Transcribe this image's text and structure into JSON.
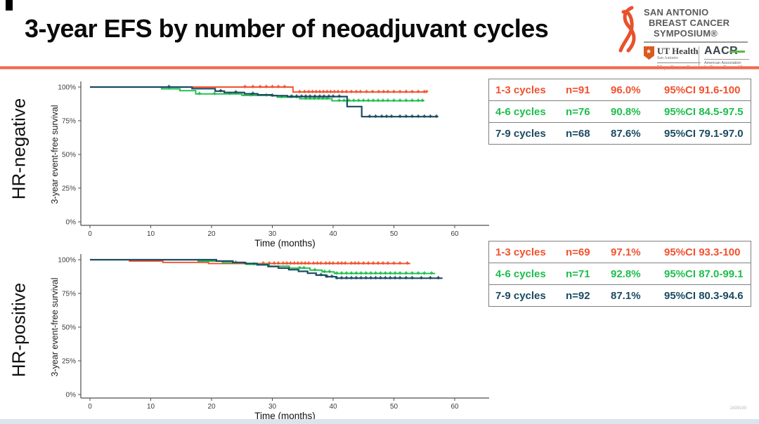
{
  "slide": {
    "title": "3-year EFS by number of neoadjuvant cycles",
    "footnote": "2409190"
  },
  "logos": {
    "sabcs": {
      "line1": "SAN ANTONIO",
      "line2": "BREAST CANCER",
      "line3": "SYMPOSIUM®"
    },
    "uthealth": {
      "star": "★",
      "name": "UT Health",
      "sub1": "San Antonio",
      "sub2": "Mays Cancer Center"
    },
    "aacr": {
      "name": "AACR",
      "sub1": "American Association",
      "sub2": "for Cancer Research®"
    }
  },
  "colors": {
    "orange": "#f1512e",
    "green": "#1dbe4d",
    "navy": "#1b4a63",
    "rule": "#ed6a4d",
    "footer_bar": "#dbe5ef"
  },
  "panels": [
    {
      "row_label": "HR-negative",
      "legend": [
        {
          "group": "1-3 cycles",
          "n": "n=91",
          "pct": "96.0%",
          "ci": "95%CI 91.6-100"
        },
        {
          "group": "4-6 cycles",
          "n": "n=76",
          "pct": "90.8%",
          "ci": "95%CI 84.5-97.5"
        },
        {
          "group": "7-9 cycles",
          "n": "n=68",
          "pct": "87.6%",
          "ci": "95%CI 79.1-97.0"
        }
      ]
    },
    {
      "row_label": "HR-positive",
      "legend": [
        {
          "group": "1-3 cycles",
          "n": "n=69",
          "pct": "97.1%",
          "ci": "95%CI 93.3-100"
        },
        {
          "group": "4-6 cycles",
          "n": "n=71",
          "pct": "92.8%",
          "ci": "95%CI 87.0-99.1"
        },
        {
          "group": "7-9 cycles",
          "n": "n=92",
          "pct": "87.1%",
          "ci": "95%CI 80.3-94.6"
        }
      ]
    }
  ],
  "chart_data": [
    {
      "type": "line",
      "subtype": "kaplan-meier-step",
      "title": "HR-negative",
      "xlabel": "Time (months)",
      "ylabel": "3-year event-free survival",
      "xlim": [
        0,
        63
      ],
      "ylim": [
        0,
        100
      ],
      "xticks": [
        0,
        10,
        20,
        30,
        40,
        50,
        60
      ],
      "yticks": [
        {
          "v": 0,
          "label": "0%"
        },
        {
          "v": 25,
          "label": "25%"
        },
        {
          "v": 50,
          "label": "50%"
        },
        {
          "v": 75,
          "label": "75%"
        },
        {
          "v": 100,
          "label": "100%"
        }
      ],
      "grid": false,
      "legend_position": "external-right-table",
      "series": [
        {
          "name": "1-3 cycles",
          "color": "#f1512e",
          "n": 91,
          "estimate_3yr": "96.0%",
          "ci": "91.6-100",
          "points": [
            [
              0,
              100
            ],
            [
              33.4,
              100
            ],
            [
              33.4,
              96.3
            ],
            [
              55.5,
              96.3
            ]
          ],
          "censors": [
            25.5,
            26.8,
            28,
            29,
            30,
            31,
            32,
            34.5,
            35.3,
            36,
            36.6,
            37.2,
            37.8,
            38.4,
            39,
            39.6,
            40.2,
            40.8,
            41.5,
            42.2,
            43,
            43.8,
            44.5,
            45.5,
            46.5,
            47.5,
            48.3,
            49,
            50,
            51,
            52,
            53,
            54,
            55,
            55.4
          ]
        },
        {
          "name": "4-6 cycles",
          "color": "#1dbe4d",
          "n": 76,
          "estimate_3yr": "90.8%",
          "ci": "84.5-97.5",
          "points": [
            [
              0,
              100
            ],
            [
              11.8,
              100
            ],
            [
              11.8,
              98.7
            ],
            [
              14.8,
              98.7
            ],
            [
              14.8,
              97.3
            ],
            [
              17.4,
              97.3
            ],
            [
              17.4,
              94.9
            ],
            [
              25,
              94.9
            ],
            [
              25,
              93.8
            ],
            [
              30.8,
              93.8
            ],
            [
              30.8,
              92.5
            ],
            [
              34.5,
              92.5
            ],
            [
              34.5,
              91.3
            ],
            [
              39.8,
              91.3
            ],
            [
              39.8,
              89.8
            ],
            [
              55,
              89.8
            ]
          ],
          "censors": [
            18,
            20.5,
            23,
            26.5,
            29,
            31.5,
            33,
            34,
            35.5,
            36.2,
            36.9,
            37.6,
            38.3,
            39,
            41,
            41.8,
            42.6,
            43.4,
            44.2,
            45,
            45.8,
            46.6,
            47.4,
            48.2,
            49,
            50,
            51,
            52,
            53,
            54,
            54.7
          ]
        },
        {
          "name": "7-9 cycles",
          "color": "#1b4a63",
          "n": 68,
          "estimate_3yr": "87.6%",
          "ci": "79.1-97.0",
          "points": [
            [
              0,
              100
            ],
            [
              16.8,
              100
            ],
            [
              16.8,
              98.8
            ],
            [
              20.6,
              98.8
            ],
            [
              20.6,
              97
            ],
            [
              22.1,
              97
            ],
            [
              22.1,
              96
            ],
            [
              25.4,
              96
            ],
            [
              25.4,
              95
            ],
            [
              27.6,
              95
            ],
            [
              27.6,
              94.2
            ],
            [
              29.9,
              94.2
            ],
            [
              29.9,
              93.6
            ],
            [
              32.5,
              93.6
            ],
            [
              32.5,
              92.9
            ],
            [
              42.3,
              92.9
            ],
            [
              42.3,
              85.5
            ],
            [
              44.7,
              85.5
            ],
            [
              44.7,
              78
            ],
            [
              57.3,
              78
            ]
          ],
          "censors": [
            13,
            21.5,
            24,
            26.8,
            30,
            33.2,
            34,
            34.8,
            35.5,
            36.2,
            37,
            37.8,
            38.5,
            39.3,
            40,
            41,
            46,
            47,
            48,
            48.8,
            49.6,
            51,
            52,
            53,
            54,
            55,
            56,
            57
          ]
        }
      ]
    },
    {
      "type": "line",
      "subtype": "kaplan-meier-step",
      "title": "HR-positive",
      "xlabel": "Time (months)",
      "ylabel": "3-year event-free survival",
      "xlim": [
        0,
        63
      ],
      "ylim": [
        0,
        100
      ],
      "xticks": [
        0,
        10,
        20,
        30,
        40,
        50,
        60
      ],
      "yticks": [
        {
          "v": 0,
          "label": "0%"
        },
        {
          "v": 25,
          "label": "25%"
        },
        {
          "v": 50,
          "label": "50%"
        },
        {
          "v": 75,
          "label": "75%"
        },
        {
          "v": 100,
          "label": "100%"
        }
      ],
      "grid": false,
      "legend_position": "external-right-table",
      "series": [
        {
          "name": "1-3 cycles",
          "color": "#f1512e",
          "n": 69,
          "estimate_3yr": "97.1%",
          "ci": "93.3-100",
          "points": [
            [
              0,
              100
            ],
            [
              6.5,
              100
            ],
            [
              6.5,
              99
            ],
            [
              12,
              99
            ],
            [
              12,
              98
            ],
            [
              19.5,
              98
            ],
            [
              19.5,
              97.2
            ],
            [
              52.7,
              97.2
            ]
          ],
          "censors": [
            28.5,
            29.5,
            30.3,
            31,
            31.8,
            32.4,
            33,
            33.6,
            34.2,
            34.8,
            35.4,
            36,
            36.8,
            37.4,
            38,
            38.8,
            39.4,
            40,
            40.8,
            41.4,
            42,
            43,
            43.6,
            44.2,
            45,
            45.8,
            46.6,
            47.4,
            48.2,
            49,
            50,
            51,
            52.2
          ]
        },
        {
          "name": "4-6 cycles",
          "color": "#1dbe4d",
          "n": 71,
          "estimate_3yr": "92.8%",
          "ci": "87.0-99.1",
          "points": [
            [
              0,
              100
            ],
            [
              17.8,
              100
            ],
            [
              17.8,
              98.9
            ],
            [
              21.8,
              98.9
            ],
            [
              21.8,
              97.8
            ],
            [
              25.7,
              97.8
            ],
            [
              25.7,
              96.6
            ],
            [
              29.5,
              96.6
            ],
            [
              29.5,
              95.2
            ],
            [
              32.8,
              95.2
            ],
            [
              32.8,
              93.8
            ],
            [
              36.2,
              93.8
            ],
            [
              36.2,
              92.3
            ],
            [
              38.2,
              92.3
            ],
            [
              38.2,
              91
            ],
            [
              40.2,
              91
            ],
            [
              40.2,
              89.8
            ],
            [
              56.8,
              89.8
            ]
          ],
          "censors": [
            24,
            27,
            34.5,
            35.2,
            37,
            38.6,
            39.4,
            40.6,
            41.4,
            42.2,
            43,
            43.8,
            44.6,
            45.4,
            46.2,
            47,
            47.8,
            48.6,
            49.4,
            50.2,
            51,
            52,
            53,
            54,
            55,
            56.2
          ]
        },
        {
          "name": "7-9 cycles",
          "color": "#1b4a63",
          "n": 92,
          "estimate_3yr": "87.1%",
          "ci": "80.3-94.6",
          "points": [
            [
              0,
              100
            ],
            [
              20.8,
              100
            ],
            [
              20.8,
              99
            ],
            [
              23.5,
              99
            ],
            [
              23.5,
              98
            ],
            [
              25.5,
              98
            ],
            [
              25.5,
              97.2
            ],
            [
              27.5,
              97.2
            ],
            [
              27.5,
              96.2
            ],
            [
              29.3,
              96.2
            ],
            [
              29.3,
              95
            ],
            [
              31,
              95
            ],
            [
              31,
              93.8
            ],
            [
              32.7,
              93.8
            ],
            [
              32.7,
              92.6
            ],
            [
              34.3,
              92.6
            ],
            [
              34.3,
              91.4
            ],
            [
              35.8,
              91.4
            ],
            [
              35.8,
              90
            ],
            [
              37.2,
              90
            ],
            [
              37.2,
              88.6
            ],
            [
              38.8,
              88.6
            ],
            [
              38.8,
              87.4
            ],
            [
              40.5,
              87.4
            ],
            [
              40.5,
              86.3
            ],
            [
              58,
              86.3
            ]
          ],
          "censors": [
            38,
            39,
            39.8,
            40.6,
            41.4,
            42.2,
            43,
            43.8,
            44.6,
            45.4,
            46.2,
            47,
            47.8,
            48.6,
            49.4,
            50.2,
            51,
            52,
            53,
            54.5,
            56,
            57.3
          ]
        }
      ]
    }
  ]
}
